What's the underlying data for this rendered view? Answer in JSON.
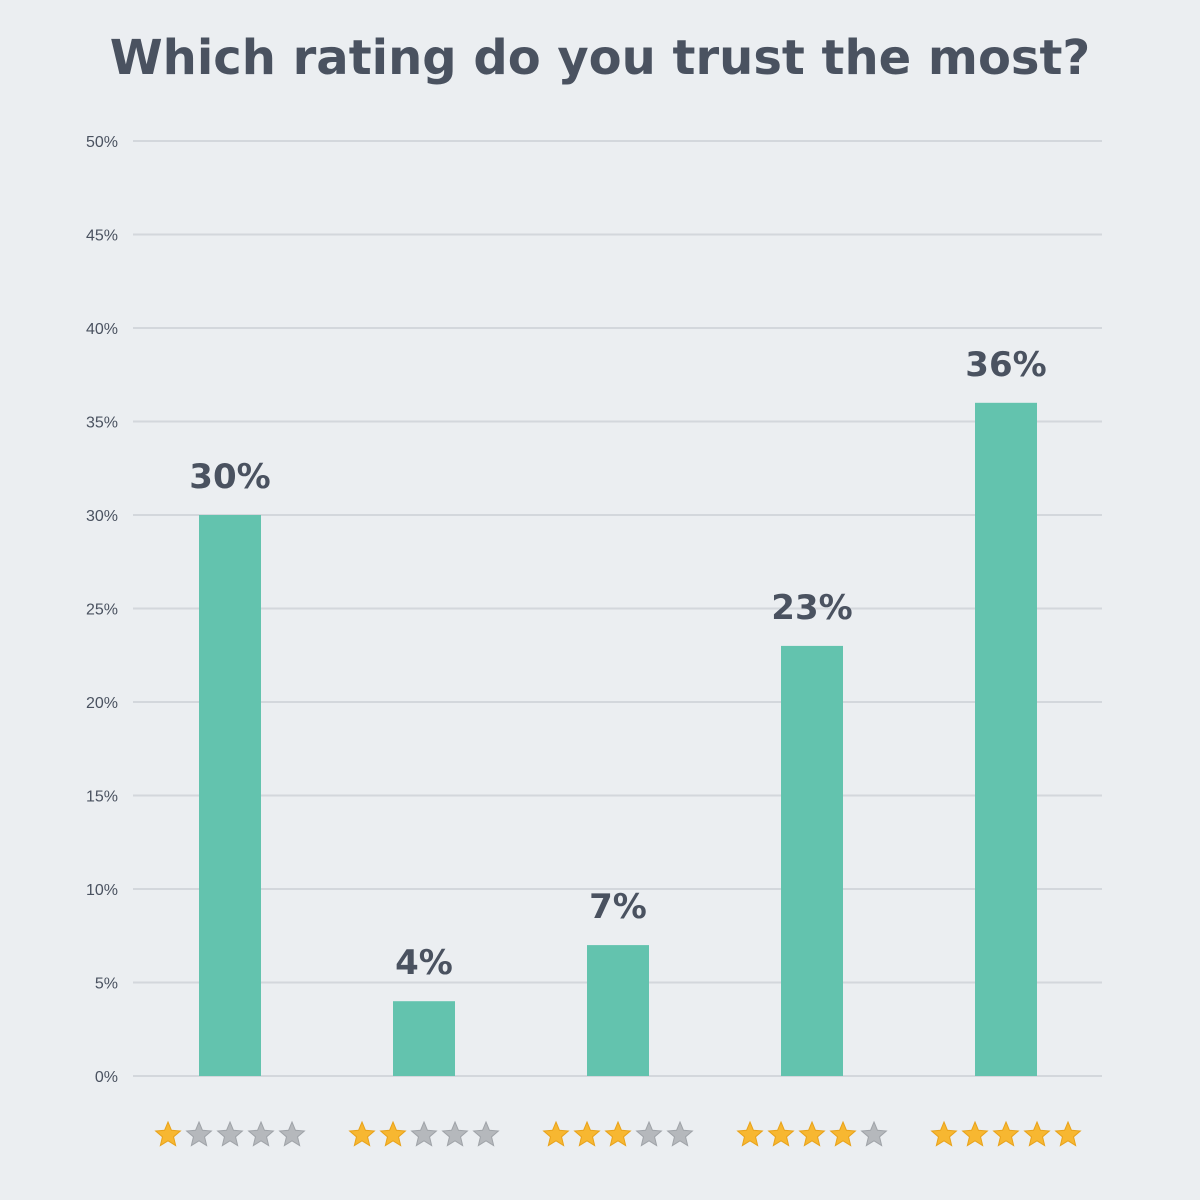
{
  "title": "Which rating do you trust the most?",
  "colors": {
    "background": "#ebeef1",
    "bar": "#63c3ae",
    "grid": "#d3d7dc",
    "text": "#4a5260",
    "star_filled": "#f7b731",
    "star_empty": "#b5b8bc"
  },
  "chart_data": {
    "type": "bar",
    "title": "Which rating do you trust the most?",
    "xlabel": "",
    "ylabel": "",
    "ylim": [
      0,
      50
    ],
    "yticks": [
      0,
      5,
      10,
      15,
      20,
      25,
      30,
      35,
      40,
      45,
      50
    ],
    "ytick_suffix": "%",
    "grid": true,
    "categories": [
      {
        "stars": 1,
        "icon": "1-star-rating-icon"
      },
      {
        "stars": 2,
        "icon": "2-star-rating-icon"
      },
      {
        "stars": 3,
        "icon": "3-star-rating-icon"
      },
      {
        "stars": 4,
        "icon": "4-star-rating-icon"
      },
      {
        "stars": 5,
        "icon": "5-star-rating-icon"
      }
    ],
    "values": [
      30,
      4,
      7,
      23,
      36
    ],
    "data_labels": [
      "30%",
      "4%",
      "7%",
      "23%",
      "36%"
    ]
  }
}
